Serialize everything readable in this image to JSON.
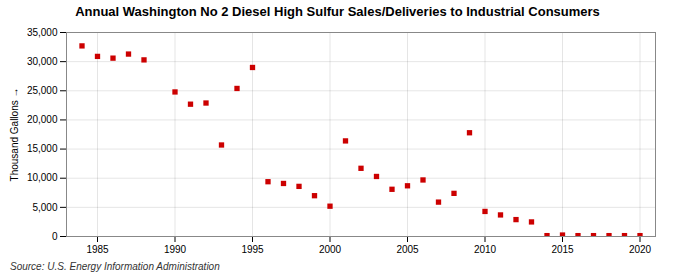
{
  "chart_data": {
    "type": "scatter",
    "title": "Annual Washington No 2 Diesel High Sulfur Sales/Deliveries to Industrial Consumers",
    "ylabel": "Thousand Gallons",
    "caption": "Source: U.S. Energy Information Administration",
    "color": "#cc0000",
    "marker": "square",
    "grid": true,
    "xlim": [
      1983,
      2021
    ],
    "ylim": [
      0,
      35000
    ],
    "xticks": [
      1985,
      1990,
      1995,
      2000,
      2005,
      2010,
      2015,
      2020
    ],
    "yticks": [
      0,
      {
        "value": 5000,
        "label": "5,000"
      },
      {
        "value": 10000,
        "label": "10,000"
      },
      {
        "value": 15000,
        "label": "15,000"
      },
      {
        "value": 20000,
        "label": "20,000"
      },
      {
        "value": 25000,
        "label": "25,000"
      },
      {
        "value": 30000,
        "label": "30,000"
      },
      {
        "value": 35000,
        "label": "35,000"
      }
    ],
    "x": [
      1984,
      1985,
      1986,
      1987,
      1988,
      1990,
      1991,
      1992,
      1993,
      1994,
      1995,
      1996,
      1997,
      1998,
      1999,
      2000,
      2001,
      2002,
      2003,
      2004,
      2005,
      2006,
      2007,
      2008,
      2009,
      2010,
      2011,
      2012,
      2013,
      2014,
      2015,
      2016,
      2017,
      2018,
      2019,
      2020
    ],
    "values": [
      32700,
      30900,
      30600,
      31300,
      30300,
      24800,
      22700,
      22900,
      15700,
      25400,
      29000,
      9400,
      9100,
      8600,
      7000,
      5200,
      16400,
      11700,
      10300,
      8100,
      8700,
      9700,
      5900,
      7400,
      17800,
      4300,
      3700,
      2900,
      2500,
      150,
      250,
      150,
      150,
      150,
      150,
      150
    ]
  }
}
